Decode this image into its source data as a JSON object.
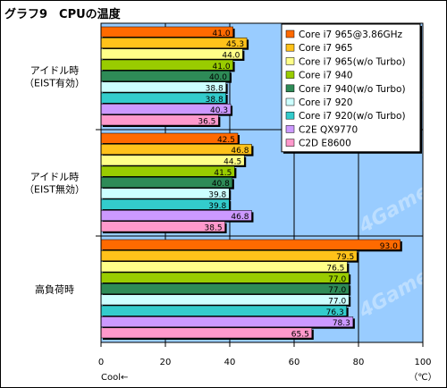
{
  "title": "グラフ9　CPUの温度",
  "watermark": "4Gamer.net",
  "chart_data": {
    "type": "bar",
    "orientation": "horizontal",
    "title": "グラフ9　CPUの温度",
    "xlabel_left": "Cool←",
    "unit": "（℃）",
    "xlim": [
      0,
      100
    ],
    "xticks": [
      0,
      20,
      40,
      60,
      80,
      100
    ],
    "grid": true,
    "legend_position": "top-right",
    "categories": [
      "アイドル時\n（EIST有効）",
      "アイドル時\n（EIST無効）",
      "高負荷時"
    ],
    "series": [
      {
        "name": "Core i7 965@3.86GHz",
        "color": "#ff6a00",
        "values": [
          41.0,
          42.5,
          93.0
        ]
      },
      {
        "name": "Core i7 965",
        "color": "#ffc21a",
        "values": [
          45.3,
          46.8,
          79.5
        ]
      },
      {
        "name": "Core i7 965(w/o Turbo)",
        "color": "#ffff88",
        "values": [
          44.0,
          44.5,
          76.5
        ]
      },
      {
        "name": "Core i7 940",
        "color": "#99cc00",
        "values": [
          41.0,
          41.5,
          77.0
        ]
      },
      {
        "name": "Core i7 940(w/o Turbo)",
        "color": "#2e8b57",
        "values": [
          40.0,
          40.8,
          77.0
        ]
      },
      {
        "name": "Core i7 920",
        "color": "#ccffff",
        "values": [
          38.8,
          39.8,
          77.0
        ]
      },
      {
        "name": "Core i7 920(w/o Turbo)",
        "color": "#33cccc",
        "values": [
          38.8,
          39.8,
          76.3
        ]
      },
      {
        "name": "C2E QX9770",
        "color": "#cc99ff",
        "values": [
          40.3,
          46.8,
          78.3
        ]
      },
      {
        "name": "C2D E8600",
        "color": "#ff99cc",
        "values": [
          36.5,
          38.5,
          65.5
        ]
      }
    ]
  }
}
